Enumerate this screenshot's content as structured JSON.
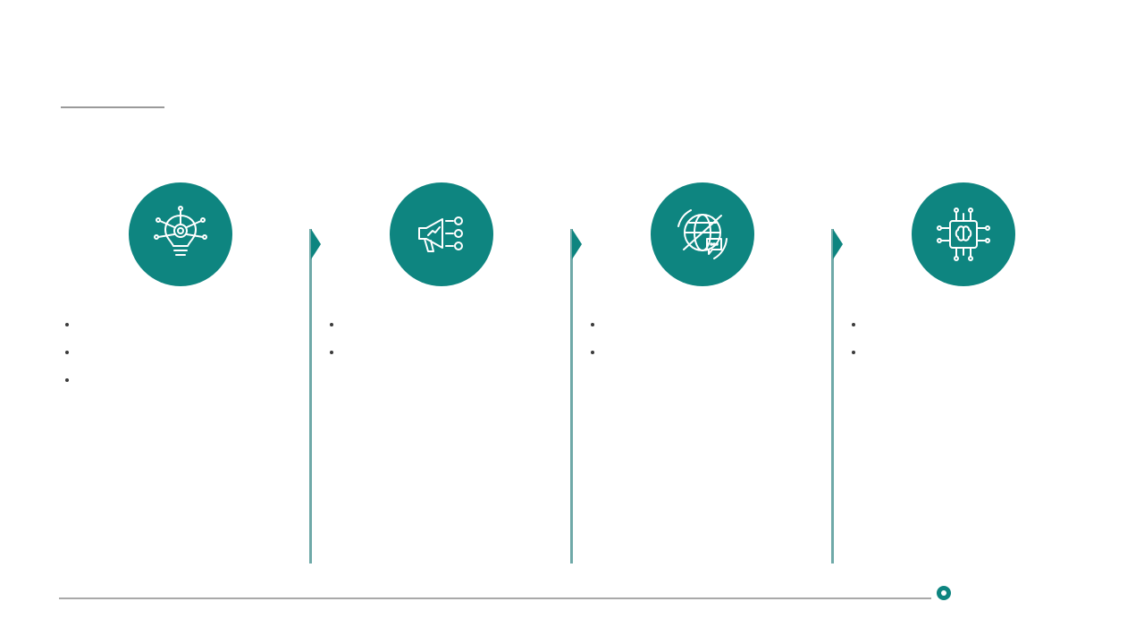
{
  "header": {
    "title": "",
    "subtitle": ""
  },
  "columns": [
    {
      "icon": "lightbulb-network-icon",
      "heading": "",
      "bullets": [
        "",
        "",
        ""
      ]
    },
    {
      "icon": "megaphone-growth-icon",
      "heading": "",
      "bullets": [
        "",
        ""
      ]
    },
    {
      "icon": "globe-chat-icon",
      "heading": "",
      "bullets": [
        "",
        ""
      ]
    },
    {
      "icon": "brain-chip-icon",
      "heading": "",
      "bullets": [
        "",
        ""
      ]
    }
  ],
  "footer": {
    "note": "",
    "logo_text": ""
  },
  "colors": {
    "accent": "#0e8580",
    "divider": "#6fa9a8"
  }
}
